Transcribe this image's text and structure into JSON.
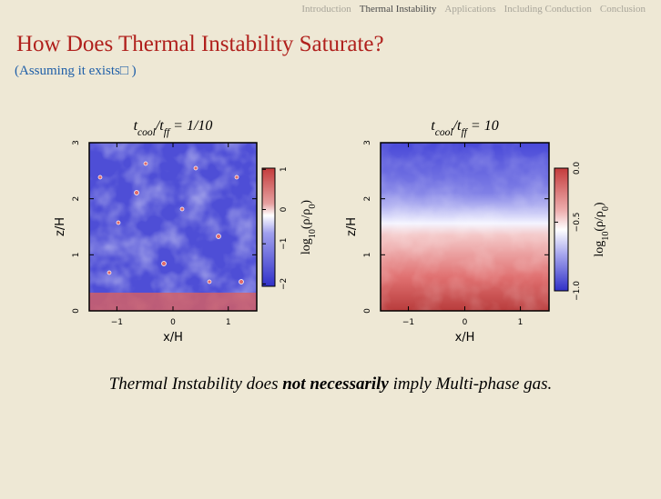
{
  "nav": {
    "items": [
      "Introduction",
      "Thermal Instability",
      "Applications",
      "Including Conduction",
      "Conclusion"
    ],
    "active": 1
  },
  "header": {
    "title": "How Does Thermal Instability Saturate?",
    "subtitle": "(Assuming it exists□ )"
  },
  "panels": [
    {
      "title": [
        {
          "text": "t"
        },
        {
          "sub": "cool"
        },
        {
          "text": "/t"
        },
        {
          "sub": "ff"
        },
        {
          "text": " = 1/10"
        }
      ],
      "x_label": "x/H",
      "y_label": "z/H",
      "x_ticks": [
        "−1",
        "0",
        "1"
      ],
      "y_ticks": [
        "0",
        "1",
        "2",
        "3"
      ],
      "colorbar_label": [
        {
          "text": "log"
        },
        {
          "sub": "10"
        },
        {
          "text": "(ρ/ρ"
        },
        {
          "sub": "0"
        },
        {
          "text": ")"
        }
      ],
      "colorbar_ticks": [
        "1",
        "0",
        "−1",
        "−2"
      ]
    },
    {
      "title": [
        {
          "text": "t"
        },
        {
          "sub": "cool"
        },
        {
          "text": "/t"
        },
        {
          "sub": "ff"
        },
        {
          "text": " = 10"
        }
      ],
      "x_label": "x/H",
      "y_label": "z/H",
      "x_ticks": [
        "−1",
        "0",
        "1"
      ],
      "y_ticks": [
        "0",
        "1",
        "2",
        "3"
      ],
      "colorbar_label": [
        {
          "text": "log"
        },
        {
          "sub": "10"
        },
        {
          "text": "(ρ/ρ"
        },
        {
          "sub": "0"
        },
        {
          "text": ")"
        }
      ],
      "colorbar_ticks": [
        "0.0",
        "−0.5",
        "−1.0"
      ]
    }
  ],
  "caption": [
    {
      "text": "Thermal Instability does "
    },
    {
      "bold": "not necessarily"
    },
    {
      "text": " imply Multi-phase gas."
    }
  ]
}
